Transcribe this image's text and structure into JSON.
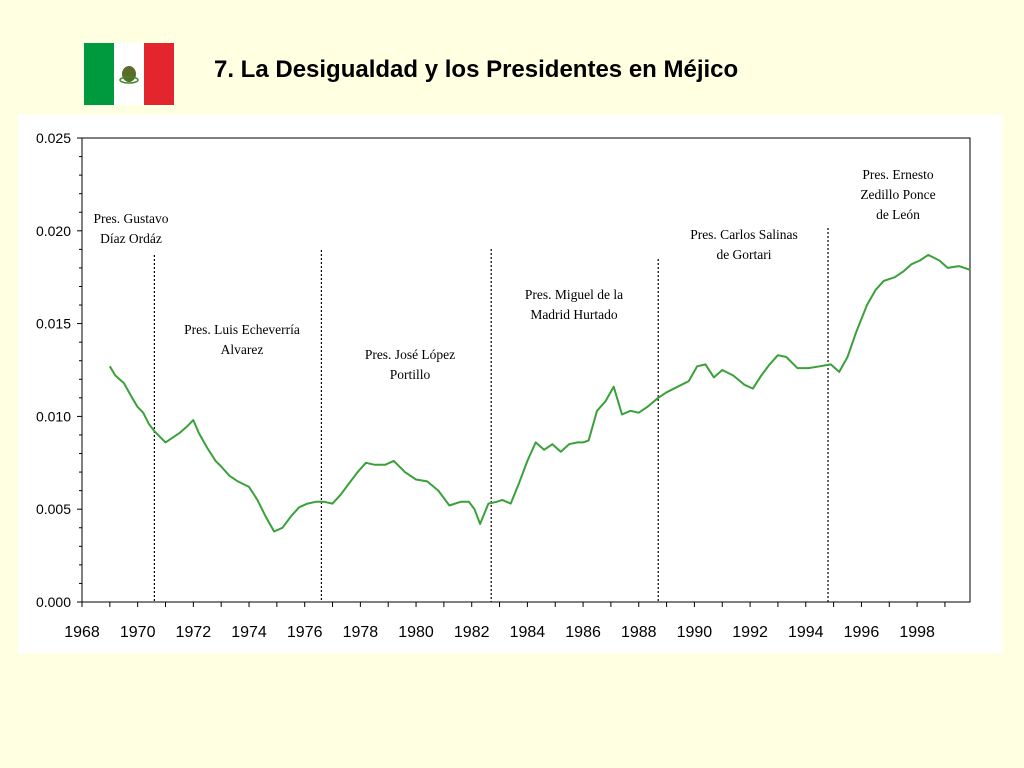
{
  "slide": {
    "title": "7.  La Desigualdad y los Presidentes en Méjico"
  },
  "flag": {
    "colors": {
      "green": "#009a3e",
      "white": "#ffffff",
      "red": "#e3262e",
      "emblem": "#5b6b2a"
    },
    "icon": "mexico-flag-icon"
  },
  "colors": {
    "background": "#ffffe1",
    "plot_background": "#ffffff",
    "series": "#3aa13a",
    "axis": "#000000"
  },
  "chart_data": {
    "type": "line",
    "title": "",
    "xlabel": "",
    "ylabel": "",
    "xlim": [
      1968,
      1999.9
    ],
    "ylim": [
      0,
      0.025
    ],
    "grid": false,
    "legend": "none",
    "y_ticks": [
      "0.000",
      "0.005",
      "0.010",
      "0.015",
      "0.020",
      "0.025"
    ],
    "x_ticks": [
      "1968",
      "1970",
      "1972",
      "1974",
      "1976",
      "1978",
      "1980",
      "1982",
      "1984",
      "1986",
      "1988",
      "1990",
      "1992",
      "1994",
      "1996",
      "1998"
    ],
    "series": [
      {
        "x": [
          1969.0,
          1969.2,
          1969.5,
          1969.8,
          1970.0,
          1970.2,
          1970.4,
          1970.6,
          1970.8,
          1971.0,
          1971.2,
          1971.5,
          1971.8,
          1972.0,
          1972.2,
          1972.5,
          1972.8,
          1973.0,
          1973.3,
          1973.6,
          1974.0,
          1974.3,
          1974.6,
          1974.9,
          1975.2,
          1975.5,
          1975.8,
          1976.1,
          1976.4,
          1976.7,
          1977.0,
          1977.3,
          1977.6,
          1977.9,
          1978.2,
          1978.5,
          1978.9,
          1979.2,
          1979.6,
          1980.0,
          1980.4,
          1980.8,
          1981.2,
          1981.6,
          1981.9,
          1982.1,
          1982.3,
          1982.6,
          1982.9,
          1983.1,
          1983.4,
          1983.7,
          1984.0,
          1984.3,
          1984.6,
          1984.9,
          1985.2,
          1985.5,
          1985.8,
          1986.0,
          1986.2,
          1986.5,
          1986.8,
          1987.1,
          1987.4,
          1987.7,
          1988.0,
          1988.3,
          1988.7,
          1989.0,
          1989.4,
          1989.8,
          1990.1,
          1990.4,
          1990.7,
          1991.0,
          1991.4,
          1991.8,
          1992.1,
          1992.4,
          1992.7,
          1993.0,
          1993.3,
          1993.7,
          1994.1,
          1994.5,
          1994.9,
          1995.2,
          1995.5,
          1995.8,
          1996.2,
          1996.5,
          1996.8,
          1997.2,
          1997.5,
          1997.8,
          1998.1,
          1998.4,
          1998.8,
          1999.1,
          1999.5,
          1999.9
        ],
        "y": [
          0.0127,
          0.0122,
          0.0118,
          0.011,
          0.0105,
          0.0102,
          0.0096,
          0.0092,
          0.0089,
          0.0086,
          0.0088,
          0.0091,
          0.0095,
          0.0098,
          0.0091,
          0.0083,
          0.0076,
          0.0073,
          0.0068,
          0.0065,
          0.0062,
          0.0055,
          0.0046,
          0.0038,
          0.004,
          0.0046,
          0.0051,
          0.0053,
          0.0054,
          0.0054,
          0.0053,
          0.0058,
          0.0064,
          0.007,
          0.0075,
          0.0074,
          0.0074,
          0.0076,
          0.007,
          0.0066,
          0.0065,
          0.006,
          0.0052,
          0.0054,
          0.0054,
          0.005,
          0.0042,
          0.0053,
          0.0054,
          0.0055,
          0.0053,
          0.0064,
          0.0076,
          0.0086,
          0.0082,
          0.0085,
          0.0081,
          0.0085,
          0.0086,
          0.0086,
          0.0087,
          0.0103,
          0.0108,
          0.0116,
          0.0101,
          0.0103,
          0.0102,
          0.0105,
          0.011,
          0.0113,
          0.0116,
          0.0119,
          0.0127,
          0.0128,
          0.0121,
          0.0125,
          0.0122,
          0.0117,
          0.0115,
          0.0122,
          0.0128,
          0.0133,
          0.0132,
          0.0126,
          0.0126,
          0.0127,
          0.0128,
          0.0124,
          0.0132,
          0.0145,
          0.016,
          0.0168,
          0.0173,
          0.0175,
          0.0178,
          0.0182,
          0.0184,
          0.0187,
          0.0184,
          0.018,
          0.0181,
          0.0179
        ]
      }
    ],
    "periods": [
      {
        "label_lines": [
          "Pres. Gustavo",
          "Díaz Ordáz"
        ],
        "end": 1970.6
      },
      {
        "label_lines": [
          "Pres. Luis Echeverría",
          "Alvarez"
        ],
        "start": 1970.6,
        "end": 1976.6
      },
      {
        "label_lines": [
          "Pres. José López",
          "Portillo"
        ],
        "start": 1976.6,
        "end": 1982.7
      },
      {
        "label_lines": [
          "Pres. Miguel de la",
          "Madrid Hurtado"
        ],
        "start": 1982.7,
        "end": 1988.7
      },
      {
        "label_lines": [
          "Pres. Carlos Salinas",
          "de Gortari"
        ],
        "start": 1988.7,
        "end": 1994.8
      },
      {
        "label_lines": [
          "Pres. Ernesto",
          "Zedillo Ponce",
          "de León"
        ],
        "start": 1994.8
      }
    ]
  }
}
